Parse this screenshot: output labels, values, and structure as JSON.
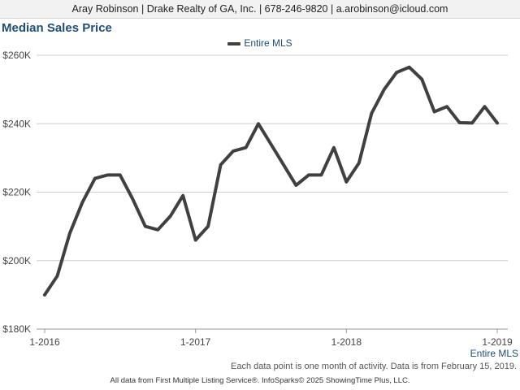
{
  "header": {
    "contact": "Aray Robinson | Drake Realty of GA, Inc. | 678-246-9820 | a.arobinson@icloud.com"
  },
  "chart_data": {
    "type": "line",
    "title": "Median Sales Price",
    "legend_position": "top-center",
    "grid": true,
    "x_ticks": [
      "1-2016",
      "1-2017",
      "1-2018",
      "1-2019"
    ],
    "y_ticks": [
      "$180K",
      "$200K",
      "$220K",
      "$240K",
      "$260K"
    ],
    "ylim": [
      180000,
      260000
    ],
    "x_axis_caption": "Entire MLS",
    "series": [
      {
        "name": "Entire MLS",
        "color": "#404040",
        "x": [
          "1-2016",
          "2-2016",
          "3-2016",
          "4-2016",
          "5-2016",
          "6-2016",
          "7-2016",
          "8-2016",
          "9-2016",
          "10-2016",
          "11-2016",
          "12-2016",
          "1-2017",
          "2-2017",
          "3-2017",
          "4-2017",
          "5-2017",
          "6-2017",
          "7-2017",
          "8-2017",
          "9-2017",
          "10-2017",
          "11-2017",
          "12-2017",
          "1-2018",
          "2-2018",
          "3-2018",
          "4-2018",
          "5-2018",
          "6-2018",
          "7-2018",
          "8-2018",
          "9-2018",
          "10-2018",
          "11-2018",
          "12-2018",
          "1-2019"
        ],
        "values": [
          190000,
          195500,
          208000,
          217000,
          224000,
          225000,
          225000,
          218000,
          210000,
          209000,
          213000,
          219000,
          206000,
          210000,
          228000,
          232000,
          233000,
          240000,
          234000,
          228000,
          222000,
          225000,
          225000,
          233000,
          223000,
          228500,
          243000,
          250000,
          255000,
          256500,
          253000,
          243500,
          245000,
          240300,
          240200,
          245000,
          240200
        ]
      }
    ]
  },
  "footer": {
    "note": "Each data point is one month of activity. Data is from February 15, 2019.",
    "credits": "All data from First Multiple Listing Service®. InfoSparks© 2025 ShowingTime Plus, LLC."
  }
}
